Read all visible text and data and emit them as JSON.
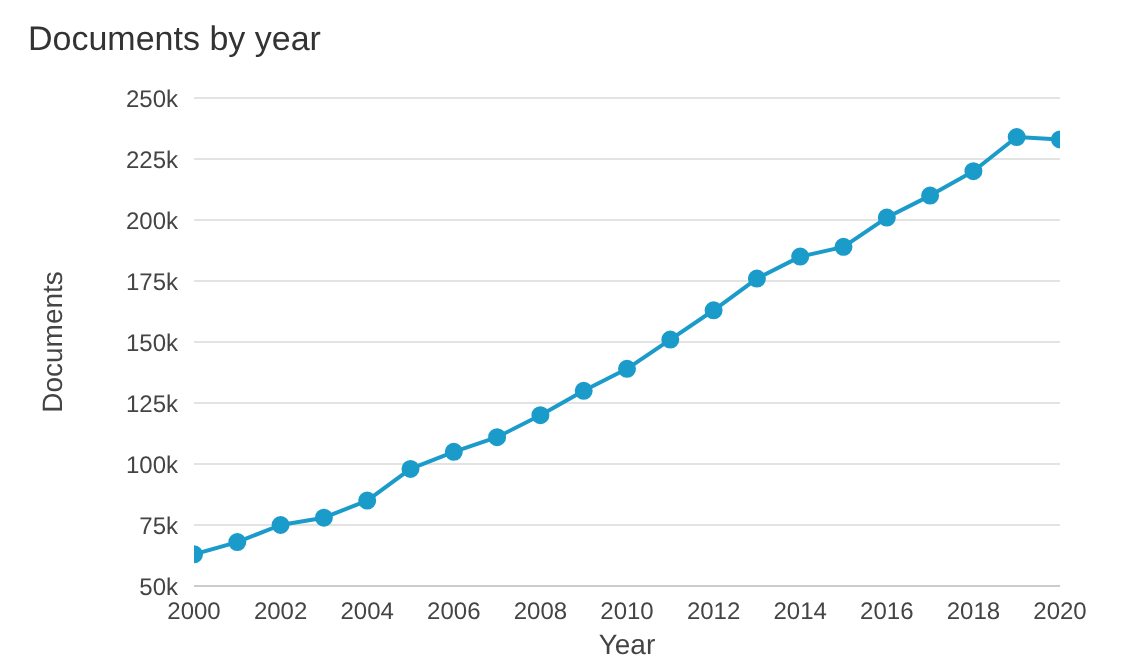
{
  "chart_data": {
    "type": "line",
    "title": "Documents by year",
    "xlabel": "Year",
    "ylabel": "Documents",
    "x": [
      2000,
      2001,
      2002,
      2003,
      2004,
      2005,
      2006,
      2007,
      2008,
      2009,
      2010,
      2011,
      2012,
      2013,
      2014,
      2015,
      2016,
      2017,
      2018,
      2019,
      2020
    ],
    "series": [
      {
        "color": "#1a9bc9",
        "values": [
          63000,
          68000,
          75000,
          78000,
          85000,
          98000,
          105000,
          111000,
          120000,
          130000,
          139000,
          151000,
          163000,
          176000,
          185000,
          189000,
          201000,
          210000,
          220000,
          234000,
          233000
        ]
      }
    ],
    "xlim": [
      2000,
      2020
    ],
    "xticks": [
      2000,
      2002,
      2004,
      2006,
      2008,
      2010,
      2012,
      2014,
      2016,
      2018,
      2020
    ],
    "ylim": [
      50000,
      250000
    ],
    "yticks": [
      {
        "value": 50000,
        "label": "50k"
      },
      {
        "value": 75000,
        "label": "75k"
      },
      {
        "value": 100000,
        "label": "100k"
      },
      {
        "value": 125000,
        "label": "125k"
      },
      {
        "value": 150000,
        "label": "150k"
      },
      {
        "value": 175000,
        "label": "175k"
      },
      {
        "value": 200000,
        "label": "200k"
      },
      {
        "value": 225000,
        "label": "225k"
      },
      {
        "value": 250000,
        "label": "250k"
      }
    ],
    "grid": "y",
    "marker": "circle",
    "line_style": "solid",
    "legend": false
  }
}
